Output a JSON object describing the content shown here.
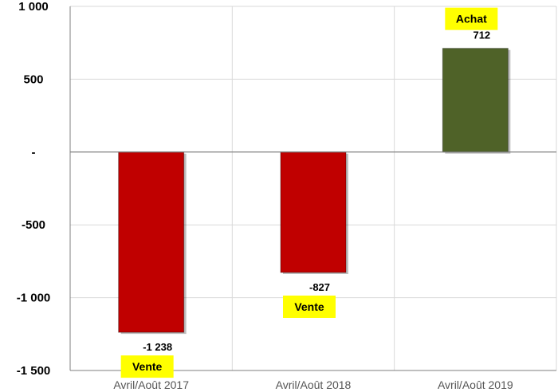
{
  "chart_data": {
    "type": "bar",
    "categories": [
      "Avril/Août 2017",
      "Avril/Août 2018",
      "Avril/Août 2019"
    ],
    "values": [
      -1238,
      -827,
      712
    ],
    "value_labels": [
      "-1 238",
      "-827",
      "712"
    ],
    "tags": [
      "Vente",
      "Vente",
      "Achat"
    ],
    "ylim": [
      -1500,
      1000
    ],
    "yticks": [
      {
        "value": 1000,
        "label": "1 000"
      },
      {
        "value": 500,
        "label": "500"
      },
      {
        "value": 0,
        "label": "-"
      },
      {
        "value": -500,
        "label": "-500"
      },
      {
        "value": -1000,
        "label": "-1 000"
      },
      {
        "value": -1500,
        "label": "-1 500"
      }
    ],
    "grid": true,
    "colors": {
      "negative": "#c00000",
      "positive": "#4f6228",
      "tag_background": "#ffff00"
    }
  }
}
